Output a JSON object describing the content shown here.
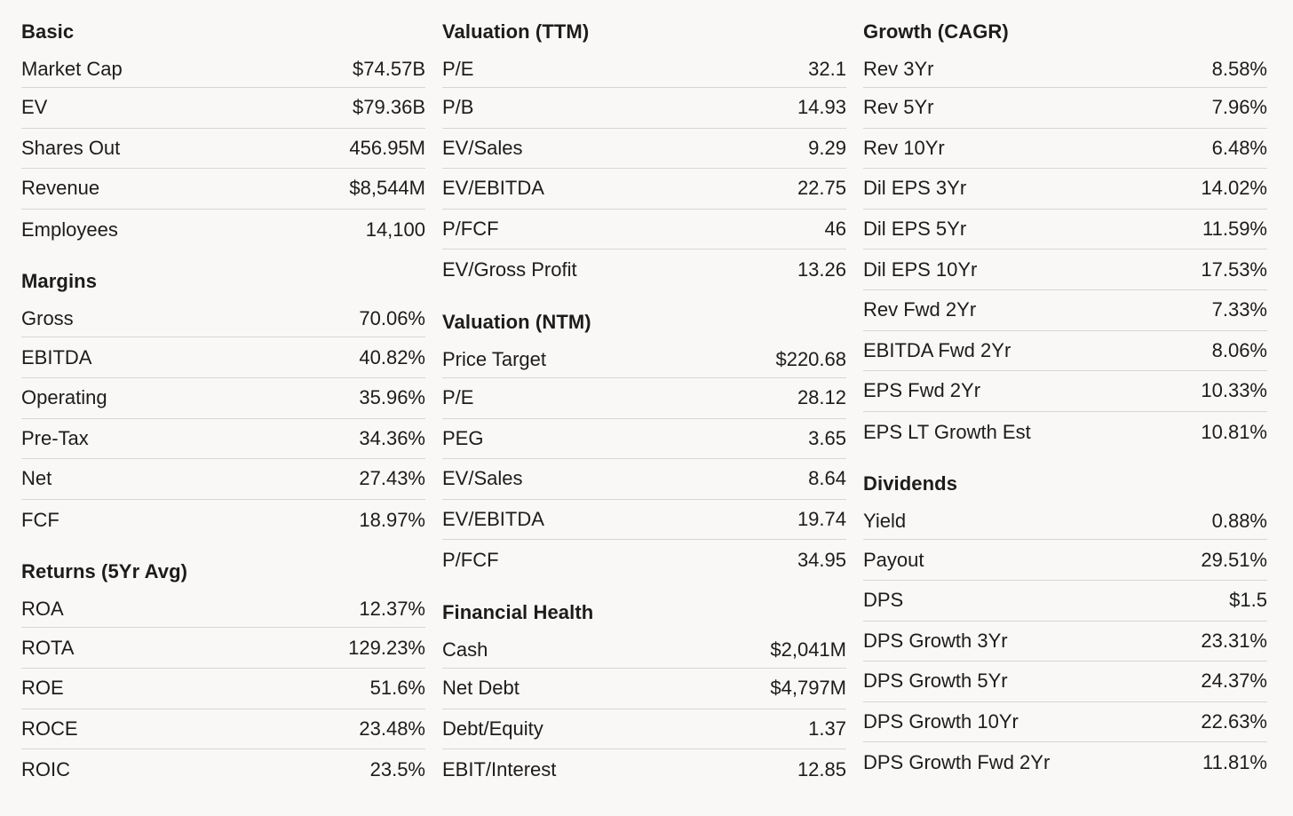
{
  "columns": [
    {
      "sections": [
        {
          "title": "Basic",
          "rows": [
            {
              "label": "Market Cap",
              "value": "$74.57B"
            },
            {
              "label": "EV",
              "value": "$79.36B"
            },
            {
              "label": "Shares Out",
              "value": "456.95M"
            },
            {
              "label": "Revenue",
              "value": "$8,544M"
            },
            {
              "label": "Employees",
              "value": "14,100"
            }
          ]
        },
        {
          "title": "Margins",
          "rows": [
            {
              "label": "Gross",
              "value": "70.06%"
            },
            {
              "label": "EBITDA",
              "value": "40.82%"
            },
            {
              "label": "Operating",
              "value": "35.96%"
            },
            {
              "label": "Pre-Tax",
              "value": "34.36%"
            },
            {
              "label": "Net",
              "value": "27.43%"
            },
            {
              "label": "FCF",
              "value": "18.97%"
            }
          ]
        },
        {
          "title": "Returns (5Yr Avg)",
          "rows": [
            {
              "label": "ROA",
              "value": "12.37%"
            },
            {
              "label": "ROTA",
              "value": "129.23%"
            },
            {
              "label": "ROE",
              "value": "51.6%"
            },
            {
              "label": "ROCE",
              "value": "23.48%"
            },
            {
              "label": "ROIC",
              "value": "23.5%"
            }
          ]
        }
      ]
    },
    {
      "sections": [
        {
          "title": "Valuation (TTM)",
          "rows": [
            {
              "label": "P/E",
              "value": "32.1"
            },
            {
              "label": "P/B",
              "value": "14.93"
            },
            {
              "label": "EV/Sales",
              "value": "9.29"
            },
            {
              "label": "EV/EBITDA",
              "value": "22.75"
            },
            {
              "label": "P/FCF",
              "value": "46"
            },
            {
              "label": "EV/Gross Profit",
              "value": "13.26"
            }
          ]
        },
        {
          "title": "Valuation (NTM)",
          "rows": [
            {
              "label": "Price Target",
              "value": "$220.68"
            },
            {
              "label": "P/E",
              "value": "28.12"
            },
            {
              "label": "PEG",
              "value": "3.65"
            },
            {
              "label": "EV/Sales",
              "value": "8.64"
            },
            {
              "label": "EV/EBITDA",
              "value": "19.74"
            },
            {
              "label": "P/FCF",
              "value": "34.95"
            }
          ]
        },
        {
          "title": "Financial Health",
          "rows": [
            {
              "label": "Cash",
              "value": "$2,041M"
            },
            {
              "label": "Net Debt",
              "value": "$4,797M"
            },
            {
              "label": "Debt/Equity",
              "value": "1.37"
            },
            {
              "label": "EBIT/Interest",
              "value": "12.85"
            }
          ]
        }
      ]
    },
    {
      "sections": [
        {
          "title": "Growth (CAGR)",
          "rows": [
            {
              "label": "Rev 3Yr",
              "value": "8.58%"
            },
            {
              "label": "Rev 5Yr",
              "value": "7.96%"
            },
            {
              "label": "Rev 10Yr",
              "value": "6.48%"
            },
            {
              "label": "Dil EPS 3Yr",
              "value": "14.02%"
            },
            {
              "label": "Dil EPS 5Yr",
              "value": "11.59%"
            },
            {
              "label": "Dil EPS 10Yr",
              "value": "17.53%"
            },
            {
              "label": "Rev Fwd 2Yr",
              "value": "7.33%"
            },
            {
              "label": "EBITDA Fwd 2Yr",
              "value": "8.06%"
            },
            {
              "label": "EPS Fwd 2Yr",
              "value": "10.33%"
            },
            {
              "label": "EPS LT Growth Est",
              "value": "10.81%"
            }
          ]
        },
        {
          "title": "Dividends",
          "rows": [
            {
              "label": "Yield",
              "value": "0.88%"
            },
            {
              "label": "Payout",
              "value": "29.51%"
            },
            {
              "label": "DPS",
              "value": "$1.5"
            },
            {
              "label": "DPS Growth 3Yr",
              "value": "23.31%"
            },
            {
              "label": "DPS Growth 5Yr",
              "value": "24.37%"
            },
            {
              "label": "DPS Growth 10Yr",
              "value": "22.63%"
            },
            {
              "label": "DPS Growth Fwd 2Yr",
              "value": "11.81%"
            }
          ]
        }
      ]
    }
  ]
}
